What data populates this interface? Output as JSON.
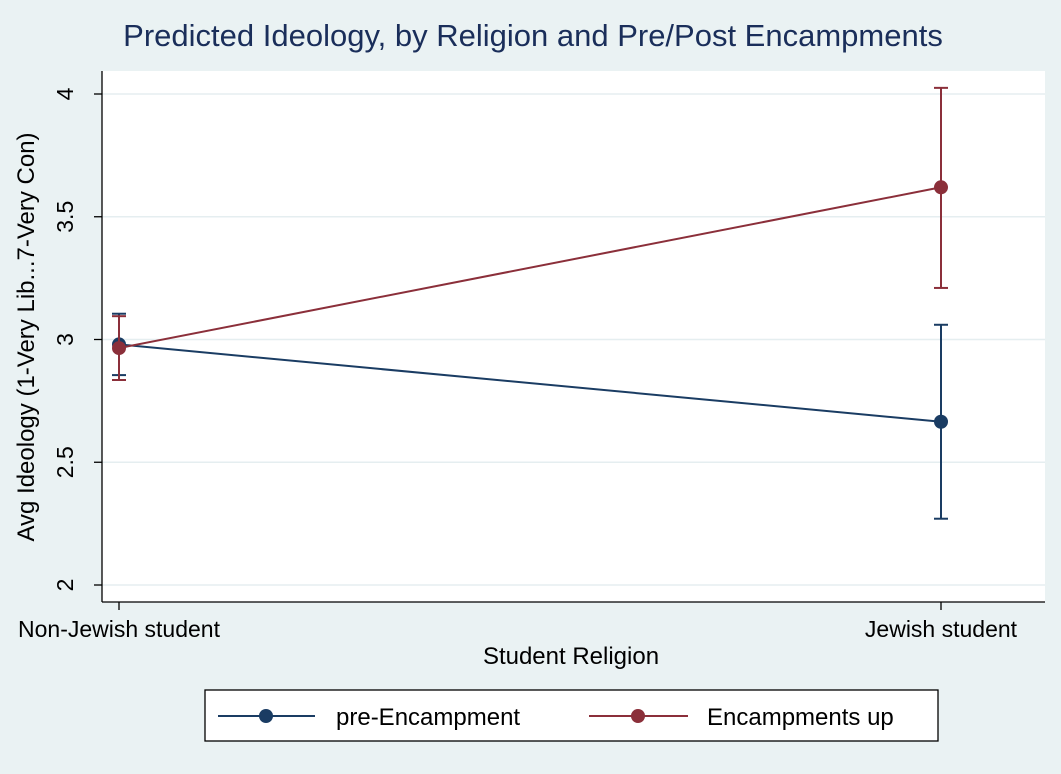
{
  "chart_data": {
    "type": "line",
    "title": "Predicted Ideology, by Religion and Pre/Post Encampments",
    "xlabel": "Student Religion",
    "ylabel": "Avg Ideology (1-Very Lib...7-Very Con)",
    "categories": [
      "Non-Jewish student",
      "Jewish student"
    ],
    "ylim": [
      2,
      4
    ],
    "yticks": [
      2,
      2.5,
      3,
      3.5,
      4
    ],
    "ytick_labels": [
      "2",
      "2.5",
      "3",
      "3.5",
      "4"
    ],
    "grid": true,
    "legend_position": "bottom",
    "series": [
      {
        "name": "pre-Encampment",
        "color": "#1a3c63",
        "values": [
          2.98,
          2.665
        ],
        "ci_low": [
          2.855,
          2.27
        ],
        "ci_high": [
          3.105,
          3.06
        ]
      },
      {
        "name": "Encampments up",
        "color": "#8b2f3a",
        "values": [
          2.965,
          3.62
        ],
        "ci_low": [
          2.835,
          3.21
        ],
        "ci_high": [
          3.095,
          4.025
        ]
      }
    ]
  }
}
